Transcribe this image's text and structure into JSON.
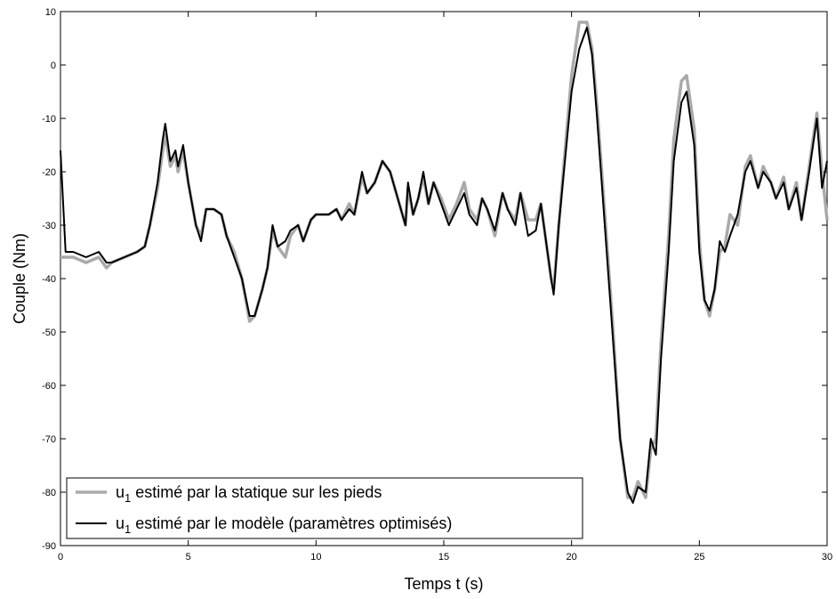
{
  "chart_data": {
    "type": "line",
    "x_label": "Temps t (s)",
    "y_label": "Couple (Nm)",
    "x": [
      0,
      0.2,
      0.5,
      1,
      1.5,
      1.8,
      2,
      2.5,
      3,
      3.3,
      3.5,
      3.8,
      4,
      4.1,
      4.3,
      4.5,
      4.6,
      4.8,
      5,
      5.3,
      5.5,
      5.7,
      6,
      6.3,
      6.5,
      6.8,
      7.1,
      7.4,
      7.6,
      7.9,
      8.1,
      8.3,
      8.5,
      8.8,
      9,
      9.3,
      9.5,
      9.8,
      10,
      10.5,
      10.8,
      11,
      11.3,
      11.5,
      11.8,
      12,
      12.3,
      12.6,
      12.9,
      13.2,
      13.5,
      13.6,
      13.8,
      14,
      14.2,
      14.4,
      14.6,
      14.9,
      15.2,
      15.5,
      15.8,
      16,
      16.3,
      16.5,
      16.7,
      17,
      17.3,
      17.5,
      17.8,
      18,
      18.3,
      18.6,
      18.8,
      19,
      19.2,
      19.3,
      19.5,
      19.8,
      20,
      20.3,
      20.6,
      20.8,
      21,
      21.3,
      21.6,
      21.9,
      22.2,
      22.4,
      22.6,
      22.9,
      23.1,
      23.3,
      23.5,
      23.8,
      24,
      24.3,
      24.5,
      24.8,
      25,
      25.2,
      25.4,
      25.6,
      25.8,
      26,
      26.2,
      26.5,
      26.8,
      27,
      27.3,
      27.5,
      27.8,
      28,
      28.3,
      28.5,
      28.8,
      29,
      29.3,
      29.6,
      29.8,
      30
    ],
    "series": [
      {
        "name": "u1 estimé par la statique sur les pieds",
        "color": "#aaaaaa",
        "width": 3.5,
        "values": [
          -36,
          -36,
          -36,
          -37,
          -36,
          -38,
          -37,
          -36,
          -35,
          -34,
          -30,
          -23,
          -16,
          -13,
          -19,
          -17,
          -20,
          -16,
          -22,
          -30,
          -32,
          -27,
          -27,
          -28,
          -32,
          -35,
          -40,
          -48,
          -47,
          -42,
          -38,
          -31,
          -34,
          -36,
          -32,
          -30,
          -33,
          -29,
          -28,
          -28,
          -27,
          -29,
          -26,
          -28,
          -21,
          -24,
          -22,
          -18,
          -20,
          -25,
          -30,
          -23,
          -28,
          -25,
          -21,
          -26,
          -22,
          -25,
          -29,
          -26,
          -22,
          -27,
          -29,
          -25,
          -27,
          -32,
          -24,
          -27,
          -29,
          -24,
          -29,
          -29,
          -26,
          -33,
          -40,
          -42,
          -30,
          -13,
          -2,
          8,
          8,
          3,
          -8,
          -28,
          -48,
          -70,
          -81,
          -81,
          -78,
          -81,
          -72,
          -70,
          -52,
          -32,
          -14,
          -3,
          -2,
          -12,
          -33,
          -44,
          -47,
          -42,
          -35,
          -34,
          -28,
          -30,
          -19,
          -17,
          -23,
          -19,
          -22,
          -25,
          -21,
          -27,
          -22,
          -29,
          -19,
          -9,
          -20,
          -29
        ]
      },
      {
        "name": "u1 estimé par le modèle (paramètres optimisés)",
        "color": "#000000",
        "width": 2,
        "values": [
          -16,
          -35,
          -35,
          -36,
          -35,
          -37,
          -37,
          -36,
          -35,
          -34,
          -30,
          -22,
          -14,
          -11,
          -18,
          -16,
          -19,
          -15,
          -22,
          -30,
          -33,
          -27,
          -27,
          -28,
          -32,
          -36,
          -40,
          -47,
          -47,
          -42,
          -38,
          -30,
          -34,
          -33,
          -31,
          -30,
          -33,
          -29,
          -28,
          -28,
          -27,
          -29,
          -27,
          -28,
          -20,
          -24,
          -22,
          -18,
          -20,
          -25,
          -30,
          -22,
          -28,
          -25,
          -20,
          -26,
          -22,
          -26,
          -30,
          -27,
          -24,
          -28,
          -30,
          -25,
          -27,
          -31,
          -24,
          -27,
          -30,
          -24,
          -32,
          -31,
          -26,
          -33,
          -40,
          -43,
          -30,
          -15,
          -5,
          3,
          7,
          2,
          -10,
          -30,
          -50,
          -70,
          -80,
          -82,
          -79,
          -80,
          -70,
          -73,
          -55,
          -35,
          -18,
          -7,
          -5,
          -15,
          -35,
          -44,
          -46,
          -42,
          -33,
          -35,
          -32,
          -28,
          -20,
          -18,
          -23,
          -20,
          -22,
          -25,
          -22,
          -27,
          -23,
          -29,
          -20,
          -10,
          -23,
          -18
        ]
      }
    ],
    "xlim": [
      0,
      30
    ],
    "xticks": [
      0,
      5,
      10,
      15,
      20,
      25,
      30
    ],
    "ylim": [
      -90,
      10
    ],
    "yticks": [
      -90,
      -80,
      -70,
      -60,
      -50,
      -40,
      -30,
      -20,
      -10,
      0,
      10
    ],
    "legend": "lower left"
  }
}
